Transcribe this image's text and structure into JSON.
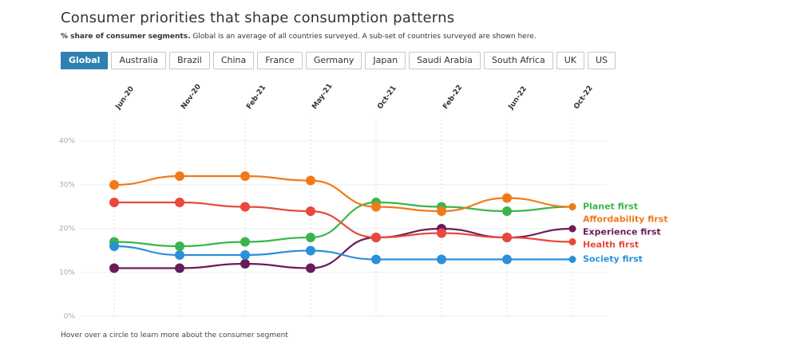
{
  "chart_data": {
    "type": "line",
    "title": "Consumer priorities that shape consumption patterns",
    "subtitle_lead": "% share of consumer segments.",
    "subtitle": "Global is an average of all countries surveyed. A sub-set of countries surveyed are shown here.",
    "tabs": [
      "Global",
      "Australia",
      "Brazil",
      "China",
      "France",
      "Germany",
      "Japan",
      "Saudi Arabia",
      "South Africa",
      "UK",
      "US"
    ],
    "active_tab": "Global",
    "categories": [
      "Jun-20",
      "Nov-20",
      "Feb-21",
      "May-21",
      "Oct-21",
      "Feb-22",
      "Jun-22",
      "Oct-22"
    ],
    "series": [
      {
        "name": "Planet first",
        "color": "#3bb54a",
        "values": [
          17,
          16,
          17,
          18,
          26,
          25,
          24,
          25
        ]
      },
      {
        "name": "Affordability first",
        "color": "#f07a1a",
        "values": [
          30,
          32,
          32,
          31,
          25,
          24,
          27,
          25
        ]
      },
      {
        "name": "Experience first",
        "color": "#6a1b5a",
        "values": [
          11,
          11,
          12,
          11,
          18,
          20,
          18,
          20
        ]
      },
      {
        "name": "Health first",
        "color": "#e8493c",
        "values": [
          26,
          26,
          25,
          24,
          18,
          19,
          18,
          17
        ]
      },
      {
        "name": "Society first",
        "color": "#2b8fd9",
        "values": [
          16,
          14,
          14,
          15,
          13,
          13,
          13,
          13
        ]
      }
    ],
    "ylim": [
      0,
      40
    ],
    "yticks": [
      {
        "value": 0,
        "label": "0%"
      },
      {
        "value": 10,
        "label": "10%"
      },
      {
        "value": 20,
        "label": "20%"
      },
      {
        "value": 30,
        "label": "30%"
      },
      {
        "value": 40,
        "label": "40%"
      }
    ],
    "grid": true,
    "note": "Hover over a circle to learn more about the consumer segment"
  }
}
